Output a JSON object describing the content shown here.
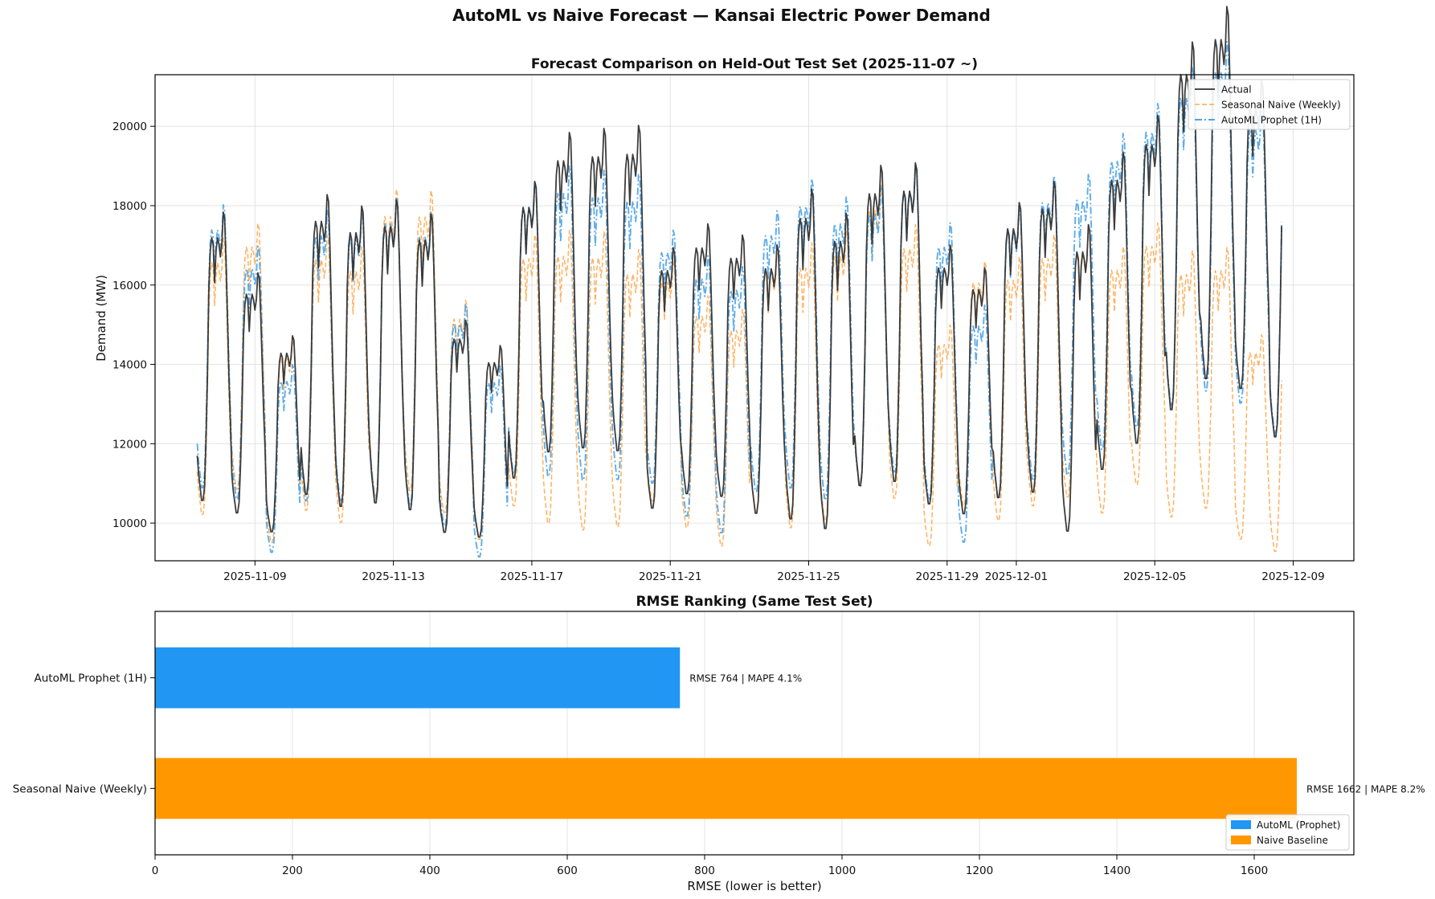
{
  "suptitle": "AutoML vs Naive Forecast — Kansai Electric Power Demand",
  "chart_data": [
    {
      "type": "line",
      "title": "Forecast Comparison on Held-Out Test Set (2025-11-07 ~)",
      "xlabel": "",
      "ylabel": "Demand (MW)",
      "x_unit": "days since 2025-11-07 00:00",
      "xlim": [
        -1.22,
        33.42
      ],
      "ylim": [
        9050,
        21300
      ],
      "grid": true,
      "legend_position": "upper right",
      "x_ticks": [
        {
          "value": 1.667,
          "label": "2025-11-09"
        },
        {
          "value": 5.667,
          "label": "2025-11-13"
        },
        {
          "value": 9.667,
          "label": "2025-11-17"
        },
        {
          "value": 13.667,
          "label": "2025-11-21"
        },
        {
          "value": 17.667,
          "label": "2025-11-25"
        },
        {
          "value": 21.667,
          "label": "2025-11-29"
        },
        {
          "value": 23.667,
          "label": "2025-12-01"
        },
        {
          "value": 27.667,
          "label": "2025-12-05"
        },
        {
          "value": 31.667,
          "label": "2025-12-09"
        }
      ],
      "y_ticks": [
        {
          "value": 10000,
          "label": "10000"
        },
        {
          "value": 12000,
          "label": "12000"
        },
        {
          "value": 14000,
          "label": "14000"
        },
        {
          "value": 16000,
          "label": "16000"
        },
        {
          "value": 18000,
          "label": "18000"
        },
        {
          "value": 20000,
          "label": "20000"
        }
      ],
      "daily_shape": [
        1.0,
        0.97,
        0.95,
        0.93,
        0.93,
        0.95,
        1.02,
        1.12,
        1.26,
        1.32,
        1.34,
        1.33,
        1.27,
        1.32,
        1.34,
        1.33,
        1.31,
        1.33,
        1.38,
        1.37,
        1.3,
        1.21,
        1.12,
        1.05
      ],
      "series": [
        {
          "name": "Actual",
          "color": "#333333",
          "style": "solid",
          "start_day": 0.0,
          "days": 32,
          "daily_base": [
            11700,
            11200,
            10550,
            11900,
            11600,
            11700,
            11500,
            10600,
            10400,
            12300,
            13050,
            13150,
            13100,
            11400,
            11800,
            11700,
            11300,
            11400,
            11100,
            12200,
            12300,
            11500,
            11200,
            11800,
            12000,
            11000,
            12600,
            13300,
            14300,
            15100,
            14600,
            13300
          ],
          "daily_amp": [
            1.38,
            1.2,
            1.04,
            1.41,
            1.45,
            1.45,
            1.44,
            1.12,
            1.03,
            1.35,
            1.37,
            1.36,
            1.39,
            1.28,
            1.28,
            1.25,
            1.33,
            1.62,
            1.59,
            1.47,
            1.45,
            1.26,
            1.23,
            1.4,
            1.45,
            1.56,
            1.41,
            1.38,
            1.44,
            1.38,
            1.18,
            1.21
          ],
          "end_day": 31.33
        },
        {
          "name": "Seasonal Naive (Weekly)",
          "color": "#FFA94D",
          "style": "dashed",
          "start_day": 0.0,
          "days": 32,
          "daily_base": [
            11300,
            11900,
            10300,
            11400,
            11100,
            11900,
            12000,
            11100,
            10350,
            11500,
            11150,
            11000,
            11000,
            11500,
            10800,
            10350,
            11300,
            11000,
            11200,
            12200,
            11700,
            10300,
            11400,
            11100,
            11500,
            11700,
            11300,
            12000,
            11200,
            11400,
            10400,
            10200
          ],
          "daily_amp": [
            1.37,
            1.25,
            1.1,
            1.35,
            1.39,
            1.44,
            1.4,
            1.07,
            1.05,
            1.32,
            1.47,
            1.52,
            1.41,
            1.17,
            1.2,
            1.28,
            1.3,
            1.45,
            1.45,
            1.37,
            1.31,
            1.2,
            1.2,
            1.33,
            1.32,
            1.27,
            1.32,
            1.22,
            1.33,
            1.28,
            1.1,
            1.28
          ],
          "end_day": 31.33
        },
        {
          "name": "AutoML Prophet (1H)",
          "color": "#4DA3E6",
          "style": "dashdot",
          "start_day": 0.0,
          "days": 32,
          "daily_base": [
            12000,
            11600,
            10000,
            11700,
            11700,
            11800,
            11600,
            10800,
            9900,
            12400,
            12400,
            12300,
            12300,
            12000,
            11200,
            10800,
            11900,
            12100,
            11800,
            12100,
            12500,
            11700,
            10450,
            11800,
            12300,
            12400,
            13100,
            13700,
            14300,
            14700,
            14200,
            13400
          ],
          "daily_amp": [
            1.32,
            1.22,
            1.05,
            1.39,
            1.38,
            1.43,
            1.42,
            1.15,
            1.08,
            1.32,
            1.4,
            1.41,
            1.39,
            1.18,
            1.3,
            1.38,
            1.32,
            1.43,
            1.43,
            1.38,
            1.38,
            1.32,
            1.27,
            1.38,
            1.38,
            1.36,
            1.35,
            1.32,
            1.32,
            1.33,
            1.18,
            1.2
          ],
          "end_day": 31.33
        }
      ]
    },
    {
      "type": "bar",
      "orientation": "horizontal",
      "title": "RMSE Ranking (Same Test Set)",
      "xlabel": "RMSE (lower is better)",
      "ylabel": "",
      "xlim": [
        0,
        1745
      ],
      "grid": true,
      "legend_position": "lower right",
      "categories": [
        "AutoML Prophet (1H)",
        "Seasonal Naive (Weekly)"
      ],
      "values": [
        764,
        1662
      ],
      "colors": [
        "#2196F3",
        "#FF9800"
      ],
      "data_labels": [
        "RMSE 764 | MAPE 4.1%",
        "RMSE 1662 | MAPE 8.2%"
      ],
      "x_ticks": [
        {
          "value": 0,
          "label": "0"
        },
        {
          "value": 200,
          "label": "200"
        },
        {
          "value": 400,
          "label": "400"
        },
        {
          "value": 600,
          "label": "600"
        },
        {
          "value": 800,
          "label": "800"
        },
        {
          "value": 1000,
          "label": "1000"
        },
        {
          "value": 1200,
          "label": "1200"
        },
        {
          "value": 1400,
          "label": "1400"
        },
        {
          "value": 1600,
          "label": "1600"
        }
      ],
      "legend": [
        {
          "label": "AutoML (Prophet)",
          "color": "#2196F3"
        },
        {
          "label": "Naive Baseline",
          "color": "#FF9800"
        }
      ]
    }
  ]
}
